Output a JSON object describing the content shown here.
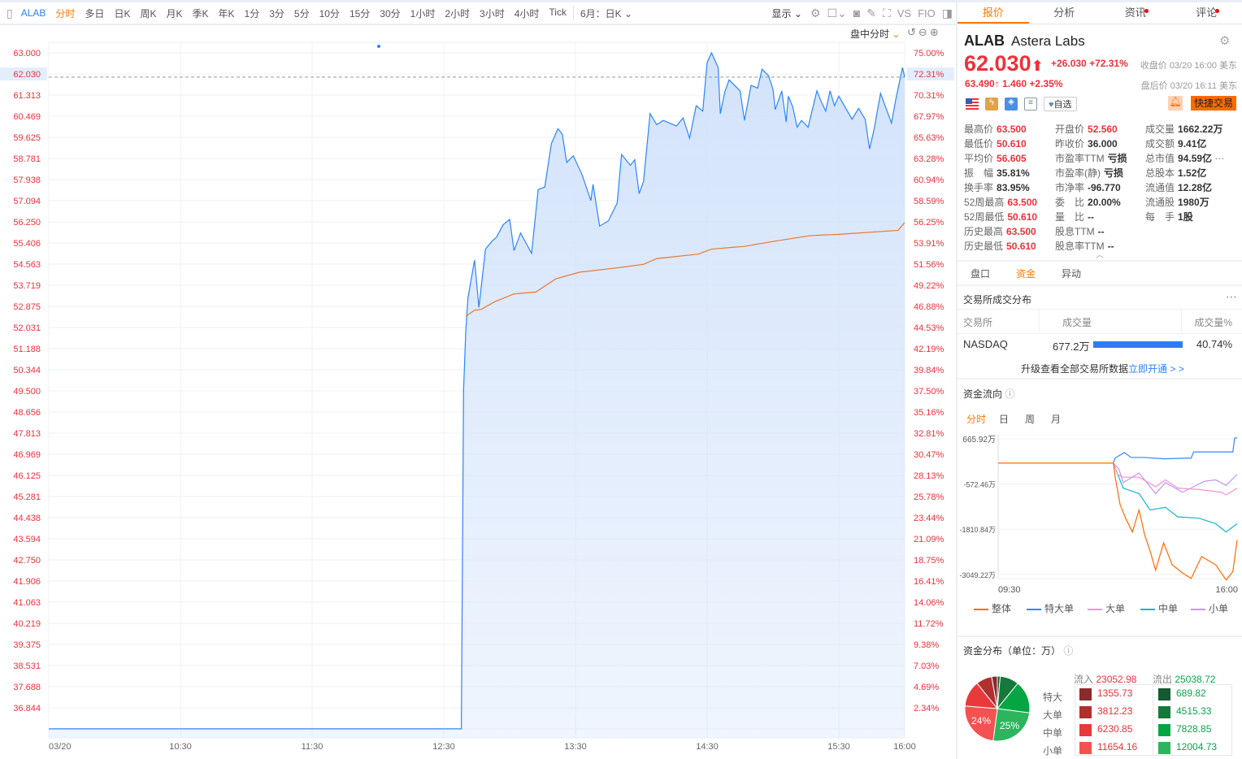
{
  "toolbar": {
    "symbol": "ALAB",
    "periods": [
      "分时",
      "多日",
      "日K",
      "周K",
      "月K",
      "季K",
      "年K",
      "1分",
      "3分",
      "5分",
      "10分",
      "15分",
      "30分",
      "1小时",
      "2小时",
      "3小时",
      "4小时",
      "Tick"
    ],
    "active_period": "分时",
    "range_select": "6月：日K",
    "display_label": "显示",
    "vs_label": "VS",
    "fio_label": "FIO",
    "session_mode": "盘中分时"
  },
  "chart_data": {
    "type": "area",
    "x_tick_labels": [
      {
        "time": "09:30",
        "label": "03/20"
      },
      {
        "time": "10:30",
        "label": "10:30"
      },
      {
        "time": "11:30",
        "label": "11:30"
      },
      {
        "time": "12:30",
        "label": "12:30"
      },
      {
        "time": "13:30",
        "label": "13:30"
      },
      {
        "time": "14:30",
        "label": "14:30"
      },
      {
        "time": "15:30",
        "label": "15:30"
      },
      {
        "time": "16:00",
        "label": "16:00"
      }
    ],
    "y_left_ticks": [
      "63.000",
      "62.030",
      "61.313",
      "60.469",
      "59.625",
      "58.781",
      "57.938",
      "57.094",
      "56.250",
      "55.406",
      "54.563",
      "53.719",
      "52.875",
      "52.031",
      "51.188",
      "50.344",
      "49.500",
      "48.656",
      "47.813",
      "46.969",
      "46.125",
      "45.281",
      "44.438",
      "43.594",
      "42.750",
      "41.906",
      "41.063",
      "40.219",
      "39.375",
      "38.531",
      "37.688",
      "36.844"
    ],
    "y_right_ticks": [
      "75.00%",
      "72.31%",
      "70.31%",
      "67.97%",
      "65.63%",
      "63.28%",
      "60.94%",
      "58.59%",
      "56.25%",
      "53.91%",
      "51.56%",
      "49.22%",
      "46.88%",
      "44.53%",
      "42.19%",
      "39.84%",
      "37.50%",
      "35.16%",
      "32.81%",
      "30.47%",
      "28.13%",
      "25.78%",
      "23.44%",
      "21.09%",
      "18.75%",
      "16.41%",
      "14.06%",
      "11.72%",
      "9.38%",
      "7.03%",
      "4.69%",
      "2.34%"
    ],
    "ylim": [
      36.0,
      63.42
    ],
    "prev_close": 36.0,
    "current_price": 62.03,
    "grid": true,
    "colors": {
      "price": "#2a85ff",
      "average": "#e8782e",
      "fill": "#d3e3fb",
      "current_line": "#999999",
      "axis_text": "#f0303a"
    },
    "price": [
      [
        "09:30",
        36.0
      ],
      [
        "12:38",
        36.0
      ],
      [
        "12:39",
        49.5
      ],
      [
        "12:40",
        51.86
      ],
      [
        "12:41",
        53.21
      ],
      [
        "12:44",
        54.72
      ],
      [
        "12:46",
        52.83
      ],
      [
        "12:49",
        55.16
      ],
      [
        "12:52",
        55.48
      ],
      [
        "12:54",
        55.64
      ],
      [
        "12:57",
        56.13
      ],
      [
        "13:00",
        56.35
      ],
      [
        "13:02",
        55.1
      ],
      [
        "13:05",
        55.8
      ],
      [
        "13:10",
        54.99
      ],
      [
        "13:13",
        57.54
      ],
      [
        "13:16",
        57.64
      ],
      [
        "13:19",
        59.37
      ],
      [
        "13:22",
        59.97
      ],
      [
        "13:24",
        59.75
      ],
      [
        "13:26",
        58.62
      ],
      [
        "13:29",
        58.89
      ],
      [
        "13:33",
        58.13
      ],
      [
        "13:37",
        57.1
      ],
      [
        "13:38",
        57.75
      ],
      [
        "13:41",
        56.08
      ],
      [
        "13:45",
        56.29
      ],
      [
        "13:49",
        57.0
      ],
      [
        "13:51",
        58.94
      ],
      [
        "13:55",
        58.51
      ],
      [
        "13:57",
        58.73
      ],
      [
        "13:59",
        57.37
      ],
      [
        "14:01",
        57.86
      ],
      [
        "14:04",
        60.57
      ],
      [
        "14:07",
        60.13
      ],
      [
        "14:10",
        60.3
      ],
      [
        "14:16",
        60.08
      ],
      [
        "14:19",
        60.4
      ],
      [
        "14:22",
        59.59
      ],
      [
        "14:25",
        60.89
      ],
      [
        "14:28",
        60.67
      ],
      [
        "14:30",
        62.62
      ],
      [
        "14:32",
        63.0
      ],
      [
        "14:35",
        62.41
      ],
      [
        "14:36",
        60.57
      ],
      [
        "14:38",
        61.43
      ],
      [
        "14:40",
        61.92
      ],
      [
        "14:45",
        61.48
      ],
      [
        "14:47",
        60.3
      ],
      [
        "14:50",
        61.7
      ],
      [
        "14:53",
        61.59
      ],
      [
        "14:55",
        62.35
      ],
      [
        "14:58",
        62.08
      ],
      [
        "15:00",
        61.54
      ],
      [
        "15:01",
        60.73
      ],
      [
        "15:04",
        61.48
      ],
      [
        "15:06",
        60.24
      ],
      [
        "15:07",
        61.27
      ],
      [
        "15:09",
        60.84
      ],
      [
        "15:11",
        60.03
      ],
      [
        "15:13",
        60.3
      ],
      [
        "15:16",
        60.03
      ],
      [
        "15:20",
        61.48
      ],
      [
        "15:22",
        61.05
      ],
      [
        "15:24",
        60.67
      ],
      [
        "15:26",
        61.48
      ],
      [
        "15:28",
        60.89
      ],
      [
        "15:30",
        61.27
      ],
      [
        "15:36",
        60.35
      ],
      [
        "15:39",
        60.78
      ],
      [
        "15:42",
        60.35
      ],
      [
        "15:44",
        59.16
      ],
      [
        "15:46",
        59.92
      ],
      [
        "15:49",
        61.38
      ],
      [
        "15:52",
        60.67
      ],
      [
        "15:54",
        60.19
      ],
      [
        "15:56",
        61.16
      ],
      [
        "15:59",
        62.41
      ],
      [
        "16:00",
        62.03
      ]
    ],
    "average": [
      [
        "12:40",
        52.47
      ],
      [
        "12:44",
        52.72
      ],
      [
        "12:47",
        52.75
      ],
      [
        "12:53",
        53.05
      ],
      [
        "13:02",
        53.37
      ],
      [
        "13:12",
        53.45
      ],
      [
        "13:21",
        53.97
      ],
      [
        "13:32",
        54.24
      ],
      [
        "13:48",
        54.4
      ],
      [
        "14:01",
        54.55
      ],
      [
        "14:07",
        54.78
      ],
      [
        "14:26",
        54.96
      ],
      [
        "14:32",
        55.16
      ],
      [
        "14:47",
        55.27
      ],
      [
        "15:01",
        55.48
      ],
      [
        "15:17",
        55.7
      ],
      [
        "15:30",
        55.75
      ],
      [
        "15:57",
        55.91
      ],
      [
        "16:00",
        56.22
      ]
    ]
  },
  "quote": {
    "tabs": [
      {
        "label": "报价",
        "active": true
      },
      {
        "label": "分析"
      },
      {
        "label": "资讯",
        "dot": true
      },
      {
        "label": "评论",
        "dot": true
      }
    ],
    "symbol": "ALAB",
    "name": "Astera Labs",
    "price": "62.030",
    "change": "+26.030",
    "change_pct": "+72.31%",
    "close_label": "收盘价 03/20 16:00 美东",
    "after_price": "63.490",
    "after_change": "1.460",
    "after_change_pct": "+2.35%",
    "after_label": "盘后价 03/20 16:11 美东",
    "watch_label": "自选",
    "quick_trade": "快捷交易",
    "colors": {
      "up": "#f0303a",
      "accent": "#ff6a00"
    }
  },
  "stats": [
    [
      {
        "l": "最高价",
        "v": "63.500",
        "red": true
      },
      {
        "l": "开盘价",
        "v": "52.560",
        "red": true
      },
      {
        "l": "成交量",
        "v": "1662.22万"
      }
    ],
    [
      {
        "l": "最低价",
        "v": "50.610",
        "red": true
      },
      {
        "l": "昨收价",
        "v": "36.000"
      },
      {
        "l": "成交额",
        "v": "9.41亿"
      }
    ],
    [
      {
        "l": "平均价",
        "v": "56.605",
        "red": true
      },
      {
        "l": "市盈率TTM",
        "v": "亏损"
      },
      {
        "l": "总市值",
        "v": "94.59亿"
      }
    ],
    [
      {
        "l": "振　幅",
        "v": "35.81%"
      },
      {
        "l": "市盈率(静)",
        "v": "亏损"
      },
      {
        "l": "总股本",
        "v": "1.52亿"
      }
    ],
    [
      {
        "l": "换手率",
        "v": "83.95%"
      },
      {
        "l": "市净率",
        "v": "-96.770"
      },
      {
        "l": "流通值",
        "v": "12.28亿"
      }
    ],
    [
      {
        "l": "52周最高",
        "v": "63.500",
        "red": true
      },
      {
        "l": "委　比",
        "v": "20.00%"
      },
      {
        "l": "流通股",
        "v": "1980万"
      }
    ],
    [
      {
        "l": "52周最低",
        "v": "50.610",
        "red": true
      },
      {
        "l": "量　比",
        "v": "--"
      },
      {
        "l": "每　手",
        "v": "1股"
      }
    ],
    [
      {
        "l": "历史最高",
        "v": "63.500",
        "red": true
      },
      {
        "l": "股息TTM",
        "v": "--"
      }
    ],
    [
      {
        "l": "历史最低",
        "v": "50.610",
        "red": true
      },
      {
        "l": "股息率TTM",
        "v": "--"
      }
    ]
  ],
  "subtabs": [
    {
      "label": "盘口"
    },
    {
      "label": "资金",
      "active": true
    },
    {
      "label": "异动"
    }
  ],
  "exchange": {
    "title": "交易所成交分布",
    "headers": [
      "交易所",
      "成交量",
      "成交量%"
    ],
    "rows": [
      {
        "name": "NASDAQ",
        "volume": "677.2万",
        "pct": "40.74%",
        "fraction": 0.4074
      }
    ],
    "upgrade_text": "升级查看全部交易所数据",
    "upgrade_link": "立即开通 > >"
  },
  "flow": {
    "title": "资金流向",
    "tabs": [
      {
        "label": "分时",
        "active": true
      },
      {
        "label": "日"
      },
      {
        "label": "周"
      },
      {
        "label": "月"
      }
    ],
    "y_ticks": [
      "665.92万",
      "-572.46万",
      "-1810.84万",
      "-3049.22万"
    ],
    "y_tick_values": [
      665.92,
      -572.46,
      -1810.84,
      -3049.22
    ],
    "x_labels": [
      "09:30",
      "16:00"
    ],
    "series": [
      {
        "name": "整体",
        "color": "#ff6a00",
        "points": [
          [
            "09:30",
            0
          ],
          [
            "12:38",
            0
          ],
          [
            "12:41",
            -385
          ],
          [
            "12:45",
            -760
          ],
          [
            "12:49",
            -1135
          ],
          [
            "12:58",
            -1510
          ],
          [
            "13:09",
            -1886
          ],
          [
            "13:20",
            -1285
          ],
          [
            "13:29",
            -1961
          ],
          [
            "13:38",
            -2411
          ],
          [
            "13:47",
            -2937
          ],
          [
            "14:00",
            -2186
          ],
          [
            "14:14",
            -2787
          ],
          [
            "14:31",
            -3012
          ],
          [
            "14:45",
            -3162
          ],
          [
            "15:02",
            -2561
          ],
          [
            "15:25",
            -2787
          ],
          [
            "15:42",
            -3200
          ],
          [
            "15:53",
            -2974
          ],
          [
            "16:00",
            -2111
          ]
        ]
      },
      {
        "name": "特大单",
        "color": "#3388ff",
        "points": [
          [
            "12:38",
            0
          ],
          [
            "12:41",
            140
          ],
          [
            "12:56",
            290
          ],
          [
            "13:07",
            155
          ],
          [
            "13:29",
            155
          ],
          [
            "14:00",
            118
          ],
          [
            "14:45",
            140
          ],
          [
            "14:49",
            306
          ],
          [
            "15:53",
            306
          ],
          [
            "15:56",
            690
          ],
          [
            "16:00",
            690
          ]
        ]
      },
      {
        "name": "大单",
        "color": "#f78fd8",
        "points": [
          [
            "12:38",
            0
          ],
          [
            "12:45",
            -310
          ],
          [
            "12:54",
            -385
          ],
          [
            "13:20",
            -385
          ],
          [
            "13:47",
            -648
          ],
          [
            "14:03",
            -460
          ],
          [
            "14:23",
            -685
          ],
          [
            "14:58",
            -723
          ],
          [
            "15:34",
            -798
          ],
          [
            "15:42",
            -873
          ],
          [
            "16:00",
            -685
          ]
        ]
      },
      {
        "name": "中单",
        "color": "#14b8c8",
        "points": [
          [
            "12:38",
            0
          ],
          [
            "12:47",
            -385
          ],
          [
            "12:54",
            -685
          ],
          [
            "13:20",
            -836
          ],
          [
            "13:38",
            -1285
          ],
          [
            "14:03",
            -1210
          ],
          [
            "14:23",
            -1473
          ],
          [
            "14:58",
            -1510
          ],
          [
            "15:25",
            -1661
          ],
          [
            "15:42",
            -1886
          ],
          [
            "16:00",
            -1661
          ]
        ]
      },
      {
        "name": "小单",
        "color": "#c394f5",
        "points": [
          [
            "12:38",
            0
          ],
          [
            "12:47",
            -160
          ],
          [
            "12:54",
            -535
          ],
          [
            "13:20",
            -273
          ],
          [
            "13:47",
            -836
          ],
          [
            "14:03",
            -535
          ],
          [
            "14:31",
            -798
          ],
          [
            "15:07",
            -498
          ],
          [
            "15:25",
            -460
          ],
          [
            "15:42",
            -610
          ],
          [
            "16:00",
            -310
          ]
        ]
      }
    ]
  },
  "distribution": {
    "title": "资金分布（单位：万）",
    "inflow_label": "流入",
    "inflow_total": "23052.98",
    "outflow_label": "流出",
    "outflow_total": "25038.72",
    "rows": [
      {
        "label": "特大",
        "in": "1355.73",
        "out": "689.82",
        "in_color": "#8b2a2a",
        "out_color": "#145a32"
      },
      {
        "label": "大单",
        "in": "3812.23",
        "out": "4515.33",
        "in_color": "#b03030",
        "out_color": "#17783c"
      },
      {
        "label": "中单",
        "in": "6230.85",
        "out": "7828.85",
        "in_color": "#e83a3a",
        "out_color": "#06a544"
      },
      {
        "label": "小单",
        "in": "11654.16",
        "out": "12004.73",
        "in_color": "#f25252",
        "out_color": "#2db55d"
      }
    ],
    "pie_labels": {
      "in_small": "24%",
      "out_small": "25%"
    }
  }
}
